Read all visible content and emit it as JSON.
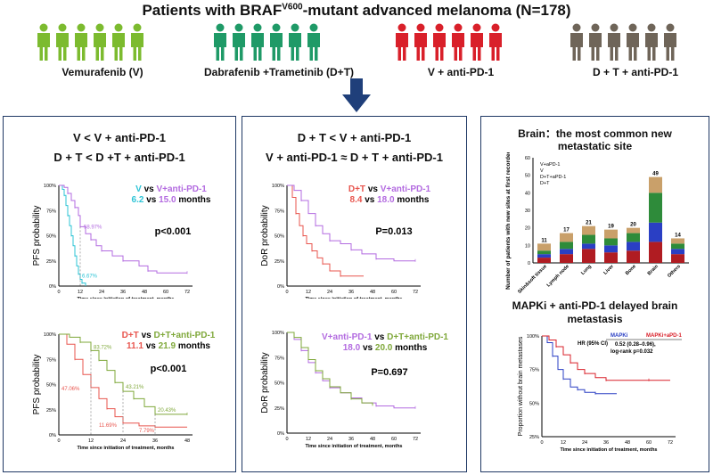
{
  "header": {
    "title_pre": "Patients with BRAF",
    "title_sup": "V600",
    "title_post": "-mutant advanced melanoma (N=178)"
  },
  "groups": [
    {
      "label": "Vemurafenib (V)",
      "color": "#7cbb2f",
      "icon": "person-icon"
    },
    {
      "label": "Dabrafenib +Trametinib (D+T)",
      "color": "#1f9a67",
      "icon": "person-icon"
    },
    {
      "label": "V + anti-PD-1",
      "color": "#d9202a",
      "icon": "person-icon"
    },
    {
      "label": "D + T + anti-PD-1",
      "color": "#6f6559",
      "icon": "person-icon"
    }
  ],
  "arrow_icon": "down-arrow-icon",
  "panel_left": {
    "title_line1": "V < V + anti-PD-1",
    "title_line2": "D + T < D +T + anti-PD-1"
  },
  "panel_mid": {
    "title_line1": "D + T < V + anti-PD-1",
    "title_line2": "V + anti-PD-1 ≈ D + T + anti-PD-1"
  },
  "panel_right": {
    "title_line1": "Brain：the most common new",
    "title_line2": "metastatic site",
    "title2_line1": "MAPKi + anti-PD-1 delayed brain",
    "title2_line2": "metastasis"
  },
  "chart_data": [
    {
      "type": "line",
      "id": "pfs-v",
      "ylabel": "PFS probability",
      "xlabel": "Time since initiation of treatment, months",
      "xticks": [
        0,
        12,
        24,
        36,
        48,
        60,
        72
      ],
      "yticks": [
        "0%",
        "25%",
        "50%",
        "75%",
        "100%"
      ],
      "xlim": [
        0,
        75
      ],
      "ylim": [
        0,
        100
      ],
      "legend": {
        "a": "V",
        "vs1": "vs",
        "b": "V+anti-PD-1",
        "va": "6.2",
        "vs2": "vs",
        "vb": "15.0",
        "unit": "months"
      },
      "pvalue": "p<0.001",
      "annotations": [
        "58.97%",
        "6.67%"
      ],
      "series": [
        {
          "color": "#2ec4d6",
          "points": [
            [
              0,
              100
            ],
            [
              2,
              96
            ],
            [
              3,
              90
            ],
            [
              4,
              80
            ],
            [
              5,
              70
            ],
            [
              6,
              60
            ],
            [
              7,
              50
            ],
            [
              8,
              40
            ],
            [
              9,
              30
            ],
            [
              10,
              20
            ],
            [
              11,
              12
            ],
            [
              12,
              6.67
            ],
            [
              13,
              3
            ],
            [
              15,
              0
            ]
          ]
        },
        {
          "color": "#b36be0",
          "points": [
            [
              0,
              100
            ],
            [
              3,
              98
            ],
            [
              5,
              92
            ],
            [
              7,
              85
            ],
            [
              9,
              78
            ],
            [
              11,
              70
            ],
            [
              12,
              58.97
            ],
            [
              15,
              52
            ],
            [
              18,
              46
            ],
            [
              21,
              40
            ],
            [
              24,
              35
            ],
            [
              30,
              30
            ],
            [
              36,
              25
            ],
            [
              45,
              20
            ],
            [
              50,
              15
            ],
            [
              55,
              13
            ],
            [
              72,
              13
            ]
          ]
        }
      ]
    },
    {
      "type": "line",
      "id": "pfs-dt",
      "ylabel": "PFS probability",
      "xlabel": "Time since initiation of treatment, months",
      "xticks": [
        0,
        12,
        24,
        36,
        48
      ],
      "yticks": [
        "0%",
        "25%",
        "50%",
        "75%",
        "100%"
      ],
      "xlim": [
        0,
        50
      ],
      "ylim": [
        0,
        100
      ],
      "legend": {
        "a": "D+T",
        "vs1": "vs",
        "b": "D+T+anti-PD-1",
        "va": "11.1",
        "vs2": "vs",
        "vb": "21.9",
        "unit": "months"
      },
      "pvalue": "p<0.001",
      "annotations": [
        "83.72%",
        "43.21%",
        "20.43%",
        "47.06%",
        "11.69%",
        "7.79%"
      ],
      "series": [
        {
          "color": "#e8554e",
          "points": [
            [
              0,
              100
            ],
            [
              3,
              90
            ],
            [
              6,
              75
            ],
            [
              9,
              60
            ],
            [
              12,
              47.06
            ],
            [
              15,
              36
            ],
            [
              18,
              26
            ],
            [
              21,
              18
            ],
            [
              24,
              11.69
            ],
            [
              30,
              9
            ],
            [
              36,
              7.79
            ],
            [
              48,
              7.79
            ]
          ]
        },
        {
          "color": "#7fa83a",
          "points": [
            [
              0,
              100
            ],
            [
              4,
              97
            ],
            [
              8,
              92
            ],
            [
              12,
              83.72
            ],
            [
              15,
              74
            ],
            [
              18,
              64
            ],
            [
              21,
              52
            ],
            [
              24,
              43.21
            ],
            [
              28,
              36
            ],
            [
              32,
              28
            ],
            [
              36,
              20.43
            ],
            [
              42,
              20.43
            ],
            [
              48,
              20.43
            ]
          ]
        }
      ]
    },
    {
      "type": "line",
      "id": "dor-dt",
      "ylabel": "DoR probability",
      "xlabel": "Time since initiation of treatment, months",
      "xticks": [
        0,
        12,
        24,
        36,
        48,
        60,
        72
      ],
      "yticks": [
        "0%",
        "25%",
        "50%",
        "75%",
        "100%"
      ],
      "xlim": [
        0,
        75
      ],
      "ylim": [
        0,
        100
      ],
      "legend": {
        "a": "D+T",
        "vs1": "vs",
        "b": "V+anti-PD-1",
        "va": "8.4",
        "vs2": "vs",
        "vb": "18.0",
        "unit": "months"
      },
      "pvalue": "P=0.013",
      "series": [
        {
          "color": "#e8554e",
          "points": [
            [
              0,
              100
            ],
            [
              3,
              88
            ],
            [
              5,
              72
            ],
            [
              7,
              60
            ],
            [
              9,
              50
            ],
            [
              11,
              42
            ],
            [
              14,
              35
            ],
            [
              17,
              28
            ],
            [
              20,
              22
            ],
            [
              24,
              15
            ],
            [
              30,
              10
            ],
            [
              43,
              10
            ]
          ]
        },
        {
          "color": "#b36be0",
          "points": [
            [
              0,
              100
            ],
            [
              4,
              95
            ],
            [
              8,
              85
            ],
            [
              12,
              72
            ],
            [
              16,
              60
            ],
            [
              20,
              52
            ],
            [
              24,
              45
            ],
            [
              30,
              42
            ],
            [
              36,
              36
            ],
            [
              42,
              32
            ],
            [
              50,
              27
            ],
            [
              60,
              25
            ],
            [
              72,
              25
            ]
          ]
        }
      ]
    },
    {
      "type": "line",
      "id": "dor-combo",
      "ylabel": "DoR probability",
      "xlabel": "Time since initiation of treatment, months",
      "xticks": [
        0,
        12,
        24,
        36,
        48,
        60,
        72
      ],
      "yticks": [
        "0%",
        "25%",
        "50%",
        "75%",
        "100%"
      ],
      "xlim": [
        0,
        75
      ],
      "ylim": [
        0,
        100
      ],
      "legend": {
        "a": "V+anti-PD-1",
        "vs1": "vs",
        "b": "D+T+anti-PD-1",
        "va": "18.0",
        "vs2": "vs",
        "vb": "20.0",
        "unit": "months"
      },
      "pvalue": "P=0.697",
      "series": [
        {
          "color": "#b36be0",
          "points": [
            [
              0,
              100
            ],
            [
              4,
              93
            ],
            [
              8,
              82
            ],
            [
              12,
              70
            ],
            [
              16,
              60
            ],
            [
              20,
              52
            ],
            [
              24,
              45
            ],
            [
              30,
              40
            ],
            [
              36,
              35
            ],
            [
              42,
              30
            ],
            [
              50,
              27
            ],
            [
              60,
              25
            ],
            [
              72,
              25
            ]
          ]
        },
        {
          "color": "#7fa83a",
          "points": [
            [
              0,
              100
            ],
            [
              4,
              95
            ],
            [
              8,
              85
            ],
            [
              12,
              73
            ],
            [
              16,
              62
            ],
            [
              20,
              54
            ],
            [
              24,
              46
            ],
            [
              30,
              40
            ],
            [
              36,
              34
            ],
            [
              42,
              30
            ],
            [
              48,
              28
            ]
          ]
        }
      ]
    },
    {
      "type": "bar",
      "id": "brain-sites",
      "stacked": true,
      "ylabel": "Number of patients with new sites at first recorded failure",
      "ylim": [
        0,
        60
      ],
      "yticks": [
        0,
        10,
        20,
        30,
        40,
        50,
        60
      ],
      "categories": [
        "Skin&soft tissue",
        "Lymph node",
        "Lung",
        "Liver",
        "Bone",
        "Brain",
        "Others"
      ],
      "totals": [
        11,
        17,
        21,
        19,
        20,
        49,
        14
      ],
      "legend": [
        "V+aPD-1",
        "V",
        "D+T+aPD-1",
        "D+T"
      ],
      "series": [
        {
          "name": "D+T",
          "color": "#b01c22",
          "values": [
            3,
            5,
            8,
            6,
            7,
            12,
            5
          ]
        },
        {
          "name": "V",
          "color": "#2a3fc4",
          "values": [
            2,
            3,
            3,
            4,
            5,
            11,
            3
          ]
        },
        {
          "name": "D+T+aPD-1",
          "color": "#2e8b3a",
          "values": [
            2,
            4,
            5,
            4,
            5,
            17,
            3
          ]
        },
        {
          "name": "V+aPD-1",
          "color": "#c9a06a",
          "values": [
            4,
            5,
            5,
            5,
            3,
            9,
            3
          ]
        }
      ]
    },
    {
      "type": "line",
      "id": "brain-free",
      "ylabel": "Proportion without brain metastases",
      "xlabel": "Time since initiation of treatment, months",
      "xticks": [
        0,
        12,
        24,
        36,
        48,
        60,
        72
      ],
      "yticks": [
        "25%",
        "50%",
        "75%",
        "100%"
      ],
      "xlim": [
        0,
        75
      ],
      "ylim": [
        25,
        100
      ],
      "legend": {
        "a": "MAPKi",
        "b": "MAPKi+aPD-1"
      },
      "hr": {
        "label": "HR (95% CI)",
        "value": "0.52 (0.28–0.96),",
        "p": "log-rank p=0.032"
      },
      "series": [
        {
          "color": "#2a3fc4",
          "points": [
            [
              0,
              100
            ],
            [
              3,
              95
            ],
            [
              6,
              85
            ],
            [
              9,
              75
            ],
            [
              12,
              68
            ],
            [
              16,
              62
            ],
            [
              20,
              60
            ],
            [
              24,
              58
            ],
            [
              30,
              57
            ],
            [
              42,
              57
            ]
          ]
        },
        {
          "color": "#d9202a",
          "points": [
            [
              0,
              100
            ],
            [
              4,
              97
            ],
            [
              8,
              92
            ],
            [
              12,
              86
            ],
            [
              16,
              80
            ],
            [
              20,
              75
            ],
            [
              24,
              72
            ],
            [
              30,
              69
            ],
            [
              36,
              67
            ],
            [
              48,
              67
            ],
            [
              60,
              67
            ],
            [
              72,
              67
            ]
          ]
        }
      ]
    }
  ]
}
